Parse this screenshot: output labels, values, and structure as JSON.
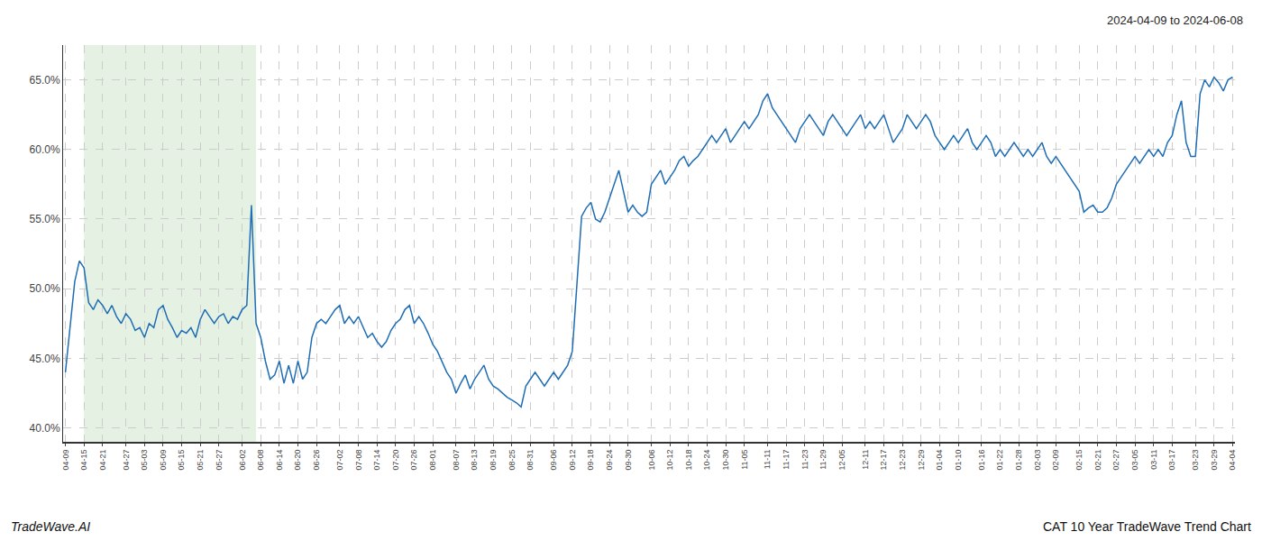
{
  "chart_data": {
    "type": "line",
    "title": "2024-04-09 to 2024-06-08",
    "annotations": [
      "TradeWave.AI",
      "CAT 10 Year TradeWave Trend Chart"
    ],
    "color": "#1f6db5",
    "shade": {
      "from": 4,
      "to": 41,
      "color": "#d4ead0"
    },
    "grid": true,
    "ylim": [
      39.0,
      67.5
    ],
    "yticks": [
      {
        "value": 40.0,
        "label": "40.0%"
      },
      {
        "value": 45.0,
        "label": "45.0%"
      },
      {
        "value": 50.0,
        "label": "50.0%"
      },
      {
        "value": 55.0,
        "label": "55.0%"
      },
      {
        "value": 60.0,
        "label": "60.0%"
      },
      {
        "value": 65.0,
        "label": "65.0%"
      }
    ],
    "categories": [
      "04-09",
      null,
      null,
      null,
      "04-15",
      null,
      null,
      null,
      "04-21",
      null,
      null,
      null,
      null,
      "04-27",
      null,
      null,
      null,
      "05-03",
      null,
      null,
      null,
      "05-09",
      null,
      null,
      null,
      "05-15",
      null,
      null,
      null,
      "05-21",
      null,
      null,
      null,
      "05-27",
      null,
      null,
      null,
      null,
      "06-02",
      null,
      null,
      null,
      "06-08",
      null,
      null,
      null,
      "06-14",
      null,
      null,
      null,
      "06-20",
      null,
      null,
      null,
      "06-26",
      null,
      null,
      null,
      null,
      "07-02",
      null,
      null,
      null,
      "07-08",
      null,
      null,
      null,
      "07-14",
      null,
      null,
      null,
      "07-20",
      null,
      null,
      null,
      "07-26",
      null,
      null,
      null,
      "08-01",
      null,
      null,
      null,
      null,
      "08-07",
      null,
      null,
      null,
      "08-13",
      null,
      null,
      null,
      "08-19",
      null,
      null,
      null,
      "08-25",
      null,
      null,
      null,
      "08-31",
      null,
      null,
      null,
      null,
      "09-06",
      null,
      null,
      null,
      "09-12",
      null,
      null,
      null,
      "09-18",
      null,
      null,
      null,
      "09-24",
      null,
      null,
      null,
      "09-30",
      null,
      null,
      null,
      null,
      "10-06",
      null,
      null,
      null,
      "10-12",
      null,
      null,
      null,
      "10-18",
      null,
      null,
      null,
      "10-24",
      null,
      null,
      null,
      "10-30",
      null,
      null,
      null,
      "11-05",
      null,
      null,
      null,
      null,
      "11-11",
      null,
      null,
      null,
      "11-17",
      null,
      null,
      null,
      "11-23",
      null,
      null,
      null,
      "11-29",
      null,
      null,
      null,
      "12-05",
      null,
      null,
      null,
      null,
      "12-11",
      null,
      null,
      null,
      "12-17",
      null,
      null,
      null,
      "12-23",
      null,
      null,
      null,
      "12-29",
      null,
      null,
      null,
      "01-04",
      null,
      null,
      null,
      "01-10",
      null,
      null,
      null,
      null,
      "01-16",
      null,
      null,
      null,
      "01-22",
      null,
      null,
      null,
      "01-28",
      null,
      null,
      null,
      "02-03",
      null,
      null,
      null,
      "02-09",
      null,
      null,
      null,
      null,
      "02-15",
      null,
      null,
      null,
      "02-21",
      null,
      null,
      null,
      "02-27",
      null,
      null,
      null,
      "03-05",
      null,
      null,
      null,
      "03-11",
      null,
      null,
      null,
      "03-17",
      null,
      null,
      null,
      null,
      "03-23",
      null,
      null,
      null,
      "03-29",
      null,
      null,
      null,
      "04-04"
    ],
    "values": [
      44.0,
      47.5,
      50.5,
      52.0,
      51.5,
      49.0,
      48.5,
      49.2,
      48.8,
      48.2,
      48.8,
      48.0,
      47.5,
      48.2,
      47.8,
      47.0,
      47.2,
      46.5,
      47.5,
      47.2,
      48.5,
      48.8,
      47.8,
      47.2,
      46.5,
      47.0,
      46.8,
      47.2,
      46.5,
      47.8,
      48.5,
      48.0,
      47.5,
      48.0,
      48.2,
      47.5,
      48.0,
      47.8,
      48.5,
      48.8,
      56.0,
      47.5,
      46.5,
      44.8,
      43.5,
      43.8,
      44.8,
      43.2,
      44.5,
      43.2,
      44.8,
      43.5,
      44.0,
      46.5,
      47.5,
      47.8,
      47.5,
      48.0,
      48.5,
      48.8,
      47.5,
      48.0,
      47.5,
      48.0,
      47.2,
      46.5,
      46.8,
      46.2,
      45.8,
      46.2,
      47.0,
      47.5,
      47.8,
      48.5,
      48.8,
      47.5,
      48.0,
      47.5,
      46.8,
      46.0,
      45.5,
      44.8,
      44.0,
      43.5,
      42.5,
      43.2,
      43.8,
      42.8,
      43.5,
      44.0,
      44.5,
      43.5,
      43.0,
      42.8,
      42.5,
      42.2,
      42.0,
      41.8,
      41.5,
      43.0,
      43.5,
      44.0,
      43.5,
      43.0,
      43.5,
      44.0,
      43.5,
      44.0,
      44.5,
      45.5,
      50.5,
      55.2,
      55.8,
      56.2,
      55.0,
      54.8,
      55.5,
      56.5,
      57.5,
      58.5,
      57.0,
      55.5,
      56.0,
      55.5,
      55.2,
      55.5,
      57.5,
      58.0,
      58.5,
      57.5,
      58.0,
      58.5,
      59.2,
      59.5,
      58.8,
      59.2,
      59.5,
      60.0,
      60.5,
      61.0,
      60.5,
      61.0,
      61.5,
      60.5,
      61.0,
      61.5,
      62.0,
      61.5,
      62.0,
      62.5,
      63.5,
      64.0,
      63.0,
      62.5,
      62.0,
      61.5,
      61.0,
      60.5,
      61.5,
      62.0,
      62.5,
      62.0,
      61.5,
      61.0,
      62.0,
      62.5,
      62.0,
      61.5,
      61.0,
      61.5,
      62.0,
      62.5,
      61.5,
      62.0,
      61.5,
      62.0,
      62.5,
      61.5,
      60.5,
      61.0,
      61.5,
      62.5,
      62.0,
      61.5,
      62.0,
      62.5,
      62.0,
      61.0,
      60.5,
      60.0,
      60.5,
      61.0,
      60.5,
      61.0,
      61.5,
      60.5,
      60.0,
      60.5,
      61.0,
      60.5,
      59.5,
      60.0,
      59.5,
      60.0,
      60.5,
      60.0,
      59.5,
      60.0,
      59.5,
      60.0,
      60.5,
      59.5,
      59.0,
      59.5,
      59.0,
      58.5,
      58.0,
      57.5,
      57.0,
      55.5,
      55.8,
      56.0,
      55.5,
      55.5,
      55.8,
      56.5,
      57.5,
      58.0,
      58.5,
      59.0,
      59.5,
      59.0,
      59.5,
      60.0,
      59.5,
      60.0,
      59.5,
      60.5,
      61.0,
      62.5,
      63.5,
      60.5,
      59.5,
      59.5,
      64.0,
      65.0,
      64.5,
      65.2,
      64.8,
      64.2,
      65.0,
      65.2
    ]
  }
}
